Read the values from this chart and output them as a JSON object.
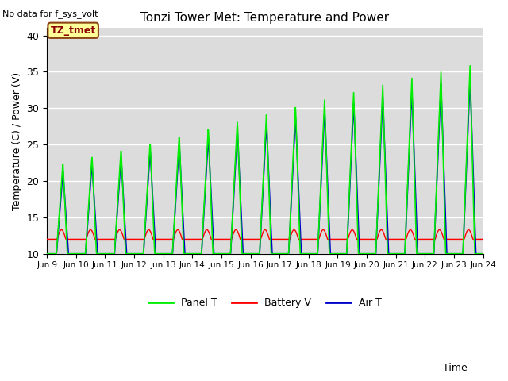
{
  "title": "Tonzi Tower Met: Temperature and Power",
  "top_left_note": "No data for f_sys_volt",
  "ylabel": "Temperature (C) / Power (V)",
  "xlabel": "Time",
  "ylim": [
    10,
    41
  ],
  "yticks": [
    10,
    15,
    20,
    25,
    30,
    35,
    40
  ],
  "bg_color": "#dcdcdc",
  "panel_color": "#00ee00",
  "battery_color": "#ff0000",
  "air_color": "#0000cc",
  "legend_labels": [
    "Panel T",
    "Battery V",
    "Air T"
  ],
  "annotation_label": "TZ_tmet",
  "x_tick_labels": [
    "Jun 9",
    "Jun 10",
    "Jun 11",
    "Jun 12",
    "Jun 13",
    "Jun 14",
    "Jun 15",
    "Jun 16",
    "Jun 17",
    "Jun 18",
    "Jun 19",
    "Jun 20",
    "Jun 21",
    "Jun 22",
    "Jun 23",
    "Jun 24"
  ],
  "figsize": [
    6.4,
    4.8
  ],
  "dpi": 100
}
